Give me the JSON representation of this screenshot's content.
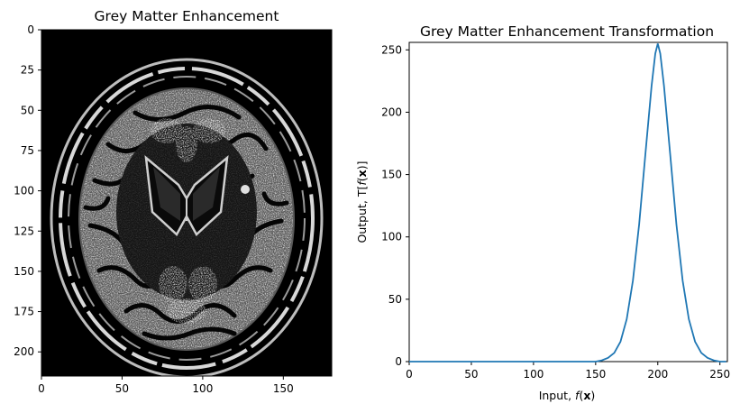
{
  "chart_data": [
    {
      "type": "image",
      "title": "Grey Matter Enhancement",
      "image_description": "Axial brain MRI slice, greyscale, grey matter shown bright on black background",
      "xlim": [
        0,
        180
      ],
      "ylim": [
        215,
        0
      ],
      "x_ticks": [
        0,
        50,
        100,
        150
      ],
      "y_ticks": [
        0,
        25,
        50,
        75,
        100,
        125,
        150,
        175,
        200
      ],
      "xlabel": "",
      "ylabel": ""
    },
    {
      "type": "line",
      "title": "Grey Matter Enhancement Transformation",
      "xlabel_text": "Input, ",
      "xlabel_math": "f",
      "xlabel_arg": "x",
      "ylabel_text": "Output, T[",
      "ylabel_math": "f",
      "ylabel_arg": "x",
      "ylabel_close": "]",
      "xlim": [
        0,
        256
      ],
      "ylim": [
        0,
        256
      ],
      "x_ticks": [
        0,
        50,
        100,
        150,
        200,
        250
      ],
      "y_ticks": [
        0,
        50,
        100,
        150,
        200,
        250
      ],
      "series": [
        {
          "color": "#1f77b4",
          "x": [
            0,
            150,
            155,
            160,
            165,
            170,
            175,
            180,
            185,
            190,
            195,
            198,
            200,
            202,
            205,
            210,
            215,
            220,
            225,
            230,
            235,
            240,
            245,
            250,
            255
          ],
          "y": [
            0,
            0,
            1,
            3,
            7,
            16,
            34,
            65,
            110,
            166,
            221,
            247,
            255,
            247,
            221,
            166,
            110,
            65,
            34,
            16,
            7,
            3,
            1,
            0,
            0
          ]
        }
      ]
    }
  ]
}
